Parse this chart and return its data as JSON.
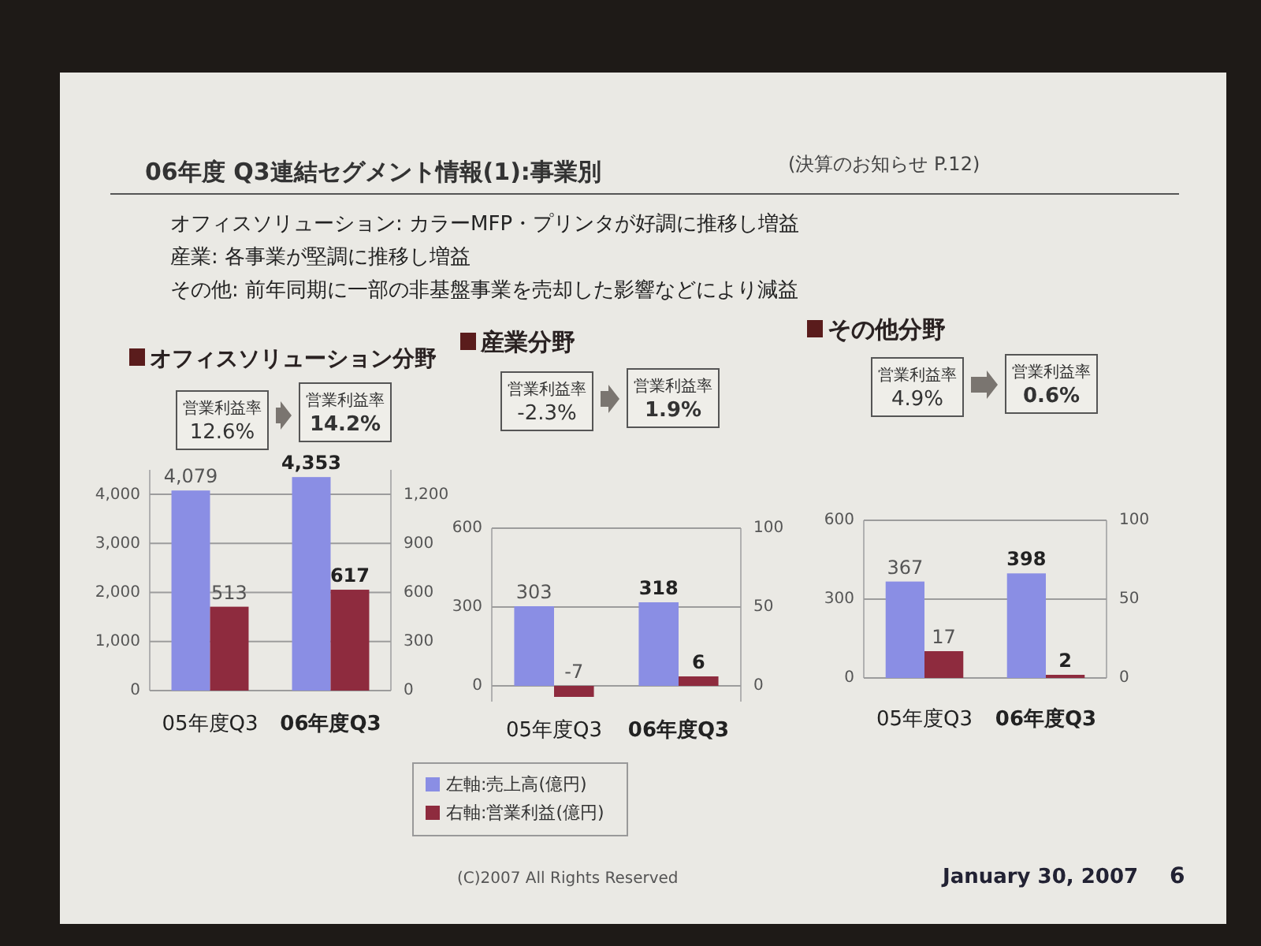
{
  "chart_data": [
    {
      "type": "other",
      "title": "06年度 Q3連結セグメント情報(1):事業別",
      "subtitle": "(決算のお知らせ P.12)",
      "annotations": [
        "オフィスソリューション: カラーMFP・プリンタが好調に推移し増益",
        "産業: 各事業が堅調に推移し増益",
        "その他: 前年同期に一部の非基盤事業を売却した影響などにより減益",
        "(C)2007 All Rights Reserved",
        "January 30, 2007",
        "6"
      ]
    },
    {
      "type": "bar",
      "title": "オフィスソリューション分野",
      "categories": [
        "05年度Q3",
        "06年度Q3"
      ],
      "series": [
        {
          "name": "左軸:売上高(億円)",
          "color": "#8a8ee4",
          "values": [
            4079,
            4353
          ],
          "value_labels": [
            "4,079",
            "4,353"
          ]
        },
        {
          "name": "右軸:営業利益(億円)",
          "color": "#8e2b3e",
          "axis": "y2",
          "values": [
            513,
            617
          ],
          "value_labels": [
            "513",
            "617"
          ]
        }
      ],
      "ylim": [
        0,
        4500
      ],
      "yticks": [
        0,
        {
          "value": 1000,
          "label": "1,000"
        },
        {
          "value": 2000,
          "label": "2,000"
        },
        {
          "value": 3000,
          "label": "3,000"
        },
        {
          "value": 4000,
          "label": "4,000"
        }
      ],
      "y2lim": [
        0,
        1350
      ],
      "y2ticks": [
        0,
        300,
        600,
        900,
        {
          "value": 1200,
          "label": "1,200"
        }
      ],
      "grid": "y",
      "legend": "bottom",
      "annotations": [
        "営業利益率\n12.6%",
        "営業利益率\n14.2%"
      ]
    },
    {
      "type": "bar",
      "title": "産業分野",
      "categories": [
        "05年度Q3",
        "06年度Q3"
      ],
      "series": [
        {
          "color": "#8a8ee4",
          "values": [
            303,
            318
          ],
          "value_labels": [
            "303",
            "318"
          ]
        },
        {
          "color": "#8e2b3e",
          "axis": "y2",
          "values": [
            -7,
            6
          ],
          "value_labels": [
            "-7",
            "6"
          ]
        }
      ],
      "ylim": [
        -60,
        600
      ],
      "yticks": [
        0,
        300,
        600
      ],
      "y2lim": [
        -10,
        100
      ],
      "y2ticks": [
        0,
        50,
        100
      ],
      "grid": "y",
      "annotations": [
        "営業利益率\n-2.3%",
        "営業利益率\n1.9%"
      ]
    },
    {
      "type": "bar",
      "title": "その他分野",
      "categories": [
        "05年度Q3",
        "06年度Q3"
      ],
      "series": [
        {
          "color": "#8a8ee4",
          "values": [
            367,
            398
          ],
          "value_labels": [
            "367",
            "398"
          ]
        },
        {
          "color": "#8e2b3e",
          "axis": "y2",
          "values": [
            17,
            2
          ],
          "value_labels": [
            "17",
            "2"
          ]
        }
      ],
      "ylim": [
        0,
        600
      ],
      "yticks": [
        0,
        300,
        600
      ],
      "y2lim": [
        0,
        100
      ],
      "y2ticks": [
        0,
        50,
        100
      ],
      "grid": "y",
      "annotations": [
        "営業利益率\n4.9%",
        "営業利益率\n0.6%"
      ]
    }
  ]
}
